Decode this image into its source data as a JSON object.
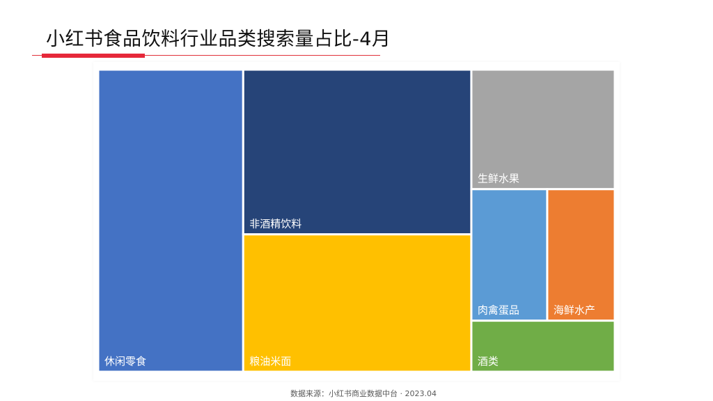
{
  "title": "小红书食品饮料行业品类搜索量占比-4月",
  "source": "数据来源：小红书商业数据中台 · 2023.04",
  "colors": {
    "title_accent": "#e6283a",
    "tile_border": "#ffffff",
    "tile_label": "#ffffff"
  },
  "chart_data": {
    "type": "treemap",
    "title": "小红书食品饮料行业品类搜索量占比-4月",
    "items": [
      {
        "name": "休闲零食",
        "share": 0.281,
        "color": "#4472c4"
      },
      {
        "name": "非酒精饮料",
        "share": 0.241,
        "color": "#264478"
      },
      {
        "name": "粮油米面",
        "share": 0.201,
        "color": "#ffc000"
      },
      {
        "name": "生鲜水果",
        "share": 0.11,
        "color": "#a5a5a5"
      },
      {
        "name": "肉禽蛋品",
        "share": 0.064,
        "color": "#5b9bd5"
      },
      {
        "name": "海鲜水产",
        "share": 0.057,
        "color": "#ed7d31"
      },
      {
        "name": "酒类",
        "share": 0.047,
        "color": "#70ad47"
      }
    ]
  }
}
